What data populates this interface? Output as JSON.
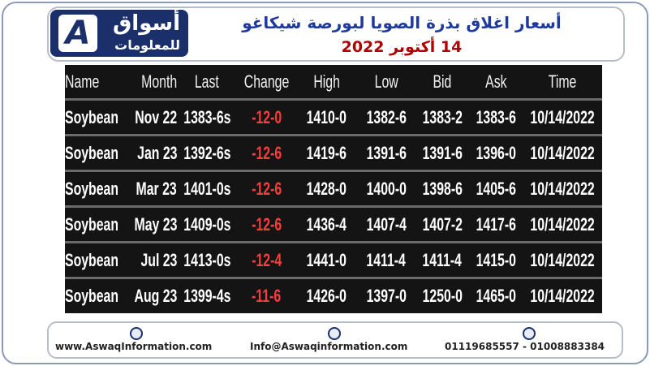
{
  "header": {
    "logo": {
      "mark": "A",
      "line1": "أسواق",
      "line2": "للمعلومات"
    },
    "title": "أسعار اغلاق بذرة الصويا لبورصة شيكاغو",
    "date": "14 أكتوبر 2022"
  },
  "table": {
    "columns": [
      "Name",
      "Month",
      "Last",
      "Change",
      "High",
      "Low",
      "Bid",
      "Ask",
      "Time"
    ],
    "rows": [
      [
        "Soybean",
        "Nov 22",
        "1383-6s",
        "-12-0",
        "1410-0",
        "1382-6",
        "1383-2",
        "1383-6",
        "10/14/2022"
      ],
      [
        "Soybean",
        "Jan 23",
        "1392-6s",
        "-12-6",
        "1419-6",
        "1391-6",
        "1391-6",
        "1396-0",
        "10/14/2022"
      ],
      [
        "Soybean",
        "Mar 23",
        "1401-0s",
        "-12-6",
        "1428-0",
        "1400-0",
        "1398-6",
        "1405-6",
        "10/14/2022"
      ],
      [
        "Soybean",
        "May 23",
        "1409-0s",
        "-12-6",
        "1436-4",
        "1407-4",
        "1407-2",
        "1417-6",
        "10/14/2022"
      ],
      [
        "Soybean",
        "Jul 23",
        "1413-0s",
        "-12-4",
        "1441-0",
        "1411-4",
        "1411-4",
        "1415-0",
        "10/14/2022"
      ],
      [
        "Soybean",
        "Aug 23",
        "1399-4s",
        "-11-6",
        "1426-0",
        "1397-0",
        "1250-0",
        "1465-0",
        "10/14/2022"
      ]
    ]
  },
  "footer": {
    "website": "www.AswaqInformation.com",
    "email": "Info@Aswaqinformation.com",
    "phone": "01119685557 - 01008883384"
  }
}
